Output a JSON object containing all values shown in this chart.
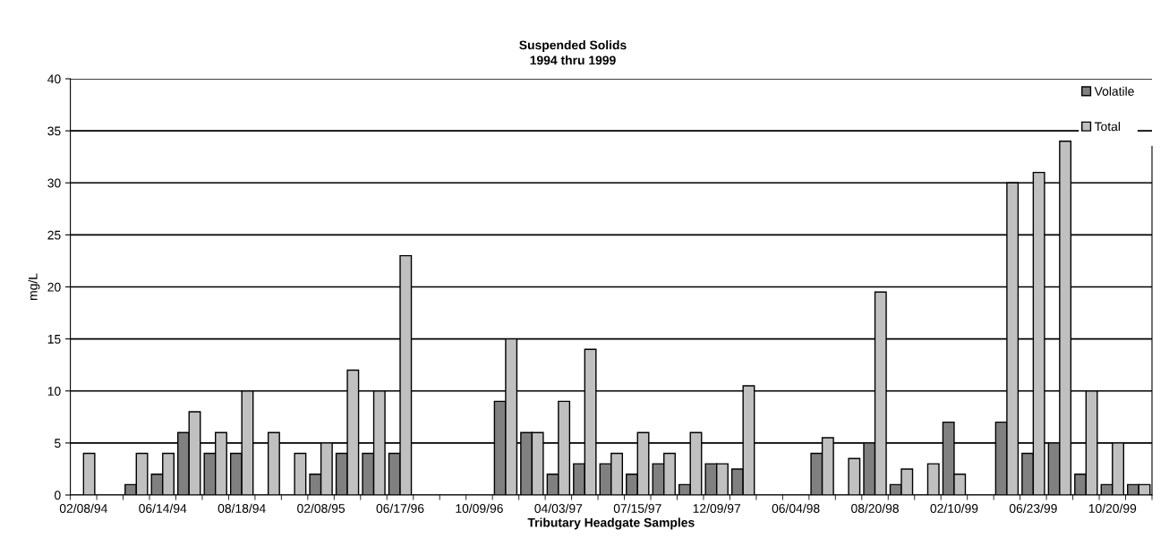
{
  "chart_data": {
    "type": "bar",
    "title": "Suspended Solids\n1994 thru 1999",
    "xlabel": "Tributary Headgate Samples",
    "ylabel": "mg/L",
    "categories": [
      "02/08/94",
      null,
      null,
      "06/14/94",
      null,
      null,
      "08/18/94",
      null,
      null,
      "02/08/95",
      null,
      null,
      "06/17/96",
      null,
      null,
      "10/09/96",
      null,
      null,
      "04/03/97",
      null,
      null,
      "07/15/97",
      null,
      null,
      "12/09/97",
      null,
      null,
      "06/04/98",
      null,
      null,
      "08/20/98",
      null,
      null,
      "02/10/99",
      null,
      null,
      "06/23/99",
      null,
      null,
      "10/20/99",
      null
    ],
    "series": [
      {
        "name": "Volatile",
        "color": "#808080",
        "values": [
          null,
          null,
          1,
          2,
          6,
          4,
          4,
          null,
          null,
          2,
          4,
          4,
          4,
          null,
          null,
          null,
          9,
          6,
          2,
          3,
          3,
          2,
          3,
          1,
          3,
          2.5,
          null,
          null,
          4,
          null,
          5,
          1,
          null,
          7,
          null,
          7,
          4,
          5,
          2,
          1,
          1
        ]
      },
      {
        "name": "Total",
        "color": "#c0c0c0",
        "values": [
          4,
          null,
          4,
          4,
          8,
          6,
          10,
          6,
          4,
          5,
          12,
          10,
          23,
          null,
          null,
          null,
          15,
          6,
          9,
          14,
          4,
          6,
          4,
          6,
          3,
          10.5,
          null,
          null,
          5.5,
          3.5,
          19.5,
          2.5,
          3,
          2,
          null,
          30,
          31,
          34,
          10,
          5,
          1
        ]
      }
    ],
    "ylim": [
      0,
      40
    ],
    "yticks": [
      0,
      5,
      10,
      15,
      20,
      25,
      30,
      35,
      40
    ],
    "grid": "y",
    "legend": "top right"
  }
}
